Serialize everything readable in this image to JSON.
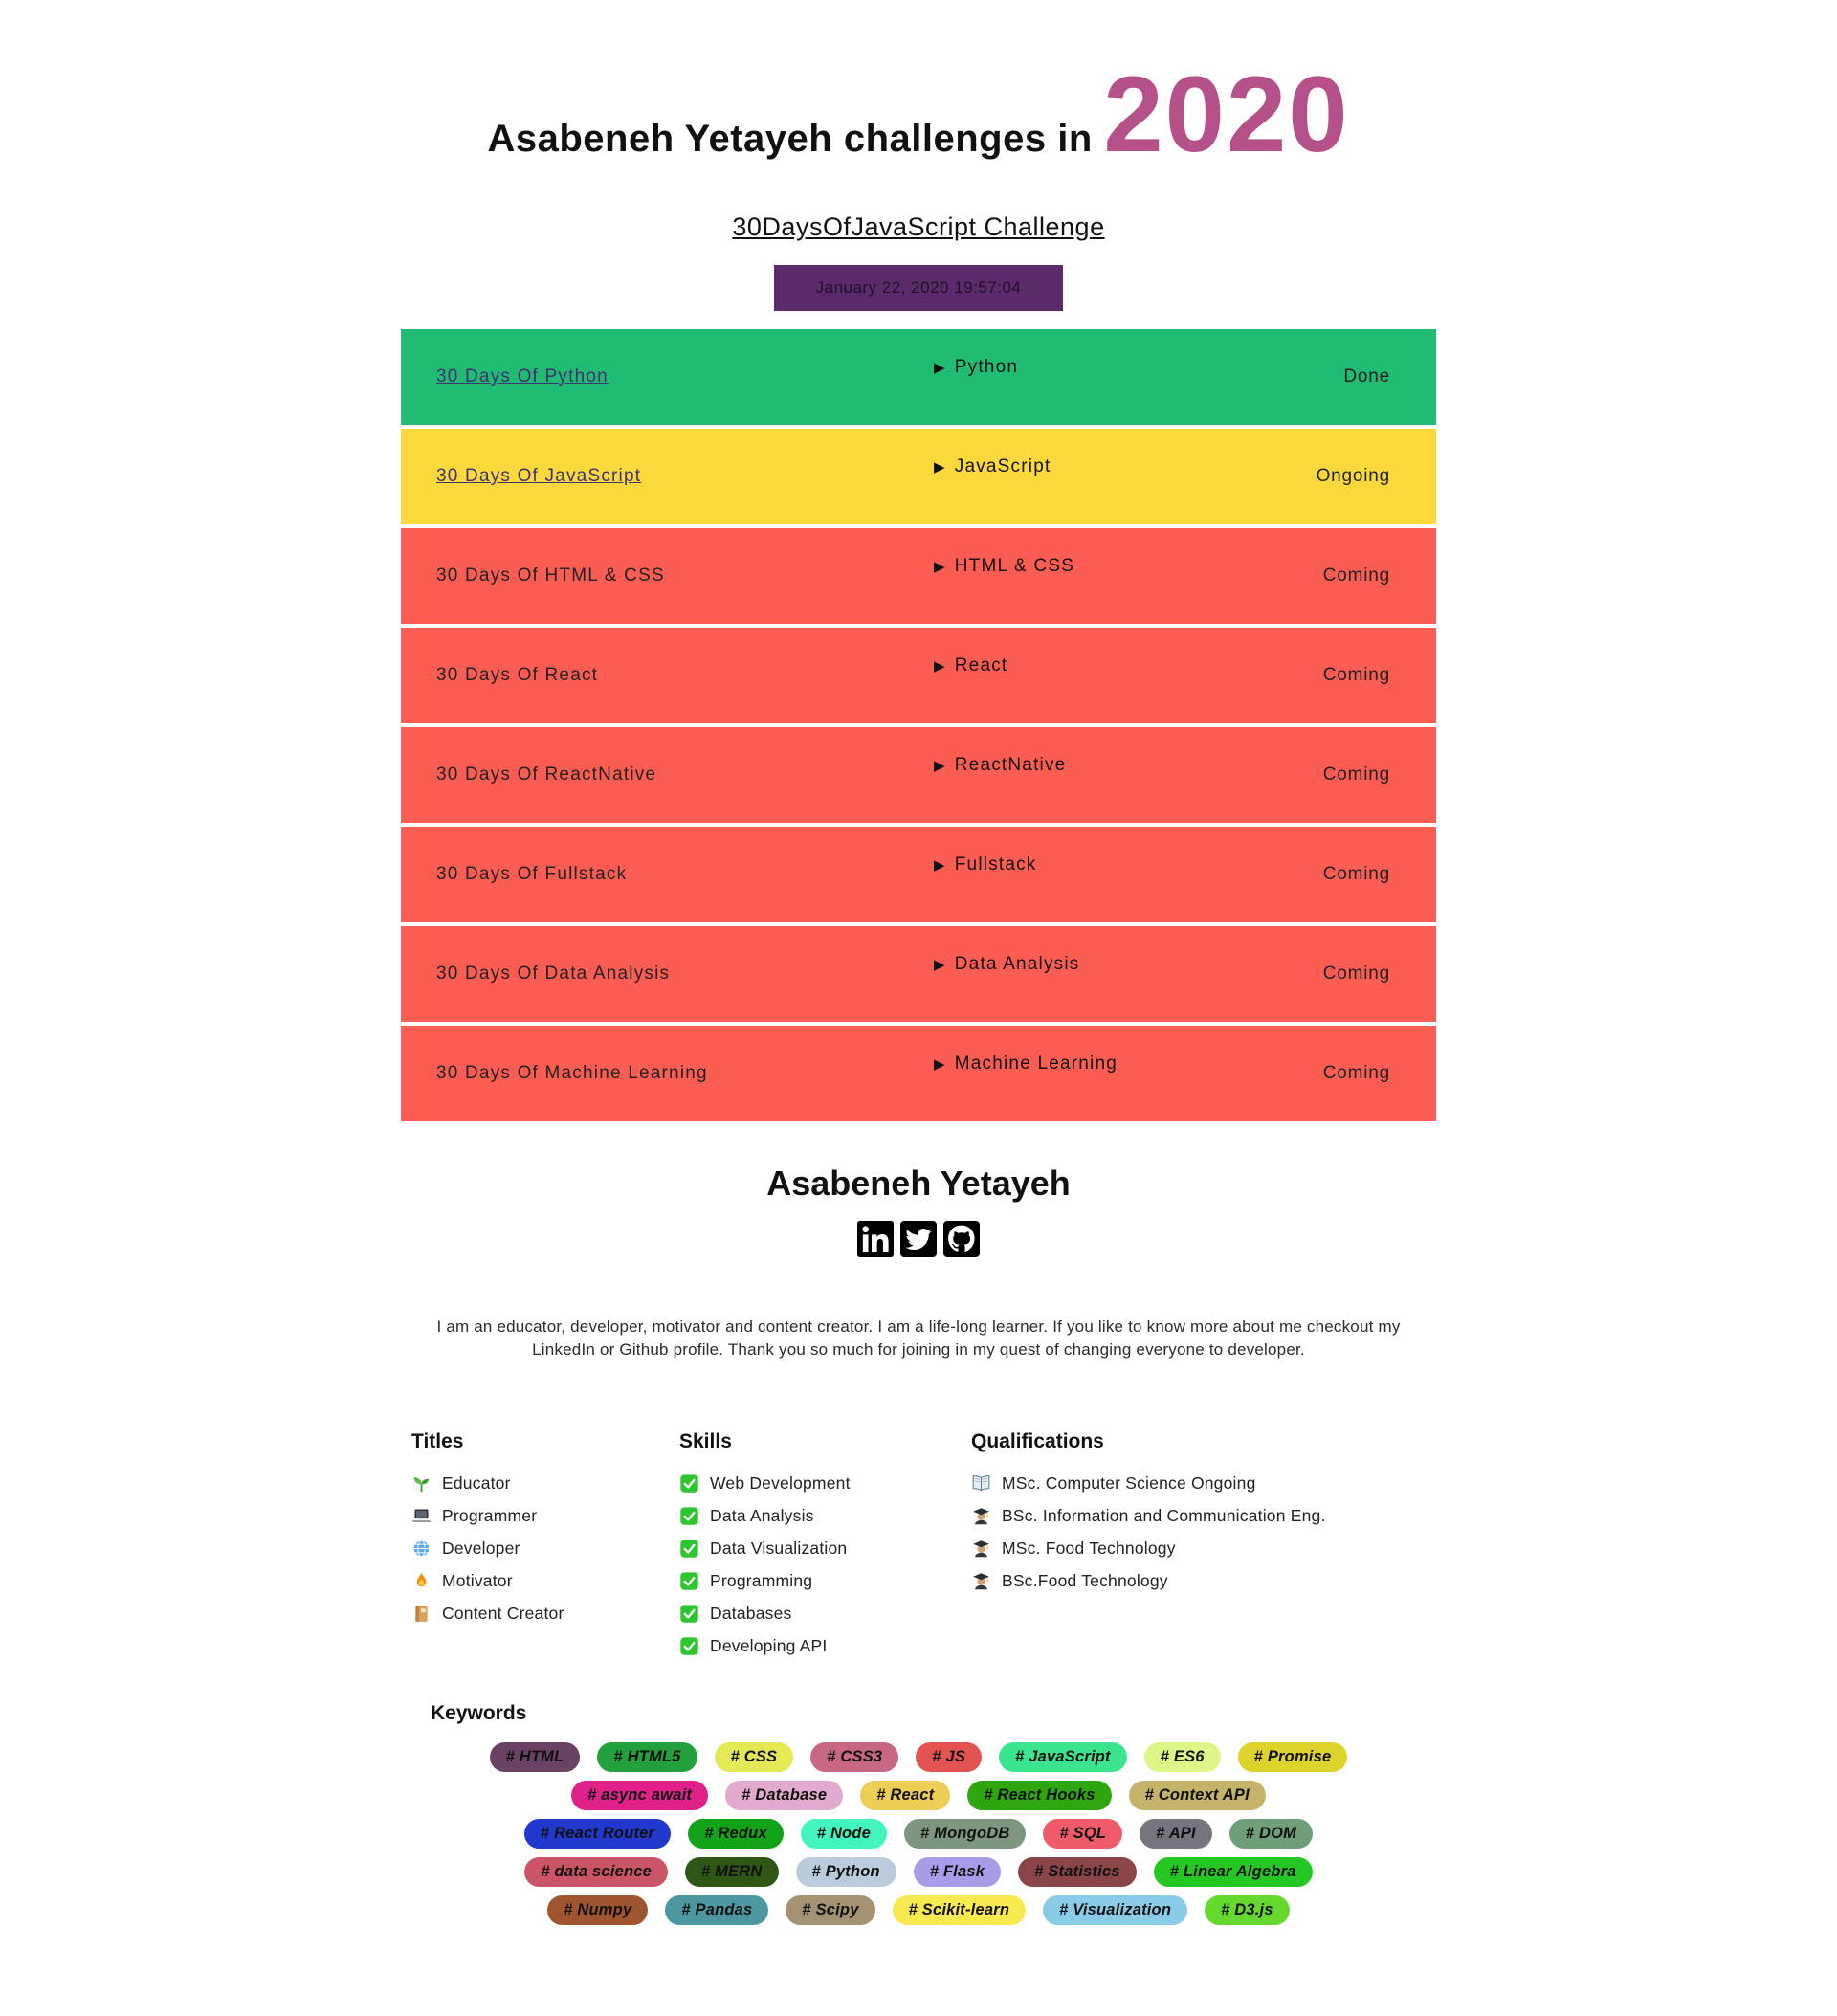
{
  "header": {
    "title_prefix": "Asabeneh Yetayeh challenges in",
    "year": "2020",
    "year_color": "#b55088",
    "subtitle_link": "30DaysOfJavaScript Challenge",
    "datetime": "January 22, 2020 19:57:04",
    "datetime_bg": "#5a2a6a"
  },
  "challenges": [
    {
      "name": "30 Days Of Python",
      "topic": "Python",
      "status": "Done",
      "bg": "#21bc74",
      "is_link": true
    },
    {
      "name": "30 Days Of JavaScript",
      "topic": "JavaScript",
      "status": "Ongoing",
      "bg": "#fbd93d",
      "is_link": true
    },
    {
      "name": "30 Days Of HTML & CSS",
      "topic": "HTML & CSS",
      "status": "Coming",
      "bg": "#fb5d52",
      "is_link": false
    },
    {
      "name": "30 Days Of React",
      "topic": "React",
      "status": "Coming",
      "bg": "#fb5d52",
      "is_link": false
    },
    {
      "name": "30 Days Of ReactNative",
      "topic": "ReactNative",
      "status": "Coming",
      "bg": "#fb5d52",
      "is_link": false
    },
    {
      "name": "30 Days Of Fullstack",
      "topic": "Fullstack",
      "status": "Coming",
      "bg": "#fb5d52",
      "is_link": false
    },
    {
      "name": "30 Days Of Data Analysis",
      "topic": "Data Analysis",
      "status": "Coming",
      "bg": "#fb5d52",
      "is_link": false
    },
    {
      "name": "30 Days Of Machine Learning",
      "topic": "Machine Learning",
      "status": "Coming",
      "bg": "#fb5d52",
      "is_link": false
    }
  ],
  "arrow_glyph": "▶",
  "footer": {
    "name": "Asabeneh Yetayeh",
    "social": [
      {
        "icon": "linkedin-icon",
        "label": "LinkedIn"
      },
      {
        "icon": "twitter-icon",
        "label": "Twitter"
      },
      {
        "icon": "github-icon",
        "label": "GitHub"
      }
    ],
    "bio": "I am an educator, developer, motivator and content creator. I am a life-long learner. If you like to know more about me checkout my LinkedIn or Github profile. Thank you so much for joining in my quest of changing everyone to developer."
  },
  "sections": {
    "titles": {
      "heading": "Titles",
      "items": [
        {
          "icon": "seedling-icon",
          "label": "Educator"
        },
        {
          "icon": "laptop-icon",
          "label": "Programmer"
        },
        {
          "icon": "globe-icon",
          "label": "Developer"
        },
        {
          "icon": "fire-icon",
          "label": "Motivator"
        },
        {
          "icon": "notebook-icon",
          "label": "Content Creator"
        }
      ]
    },
    "skills": {
      "heading": "Skills",
      "items": [
        {
          "icon": "check-icon",
          "label": "Web Development"
        },
        {
          "icon": "check-icon",
          "label": "Data Analysis"
        },
        {
          "icon": "check-icon",
          "label": "Data Visualization"
        },
        {
          "icon": "check-icon",
          "label": "Programming"
        },
        {
          "icon": "check-icon",
          "label": "Databases"
        },
        {
          "icon": "check-icon",
          "label": "Developing API"
        }
      ]
    },
    "qualifications": {
      "heading": "Qualifications",
      "items": [
        {
          "icon": "open-book-icon",
          "label": "MSc. Computer Science Ongoing"
        },
        {
          "icon": "student-icon",
          "label": "BSc. Information and Communication Eng."
        },
        {
          "icon": "student-icon",
          "label": "MSc. Food Technology"
        },
        {
          "icon": "student-icon",
          "label": "BSc.Food Technology"
        }
      ]
    }
  },
  "keywords": {
    "heading": "Keywords",
    "rows": [
      [
        {
          "label": "# HTML",
          "bg": "#6b4264"
        },
        {
          "label": "# HTML5",
          "bg": "#22a13c"
        },
        {
          "label": "# CSS",
          "bg": "#e3ea55"
        },
        {
          "label": "# CSS3",
          "bg": "#c76781"
        },
        {
          "label": "# JS",
          "bg": "#e25352"
        },
        {
          "label": "# JavaScript",
          "bg": "#3be48e"
        },
        {
          "label": "# ES6",
          "bg": "#dcf787"
        },
        {
          "label": "# Promise",
          "bg": "#ded32b"
        }
      ],
      [
        {
          "label": "# async await",
          "bg": "#e0218a"
        },
        {
          "label": "# Database",
          "bg": "#e2aacf"
        },
        {
          "label": "# React",
          "bg": "#eecf55"
        },
        {
          "label": "# React Hooks",
          "bg": "#2ea60f"
        },
        {
          "label": "# Context API",
          "bg": "#c4b369"
        }
      ],
      [
        {
          "label": "# React Router",
          "bg": "#2038ce"
        },
        {
          "label": "# Redux",
          "bg": "#12a318"
        },
        {
          "label": "# Node",
          "bg": "#42f5be"
        },
        {
          "label": "# MongoDB",
          "bg": "#7e967f"
        },
        {
          "label": "# SQL",
          "bg": "#ef5b69"
        },
        {
          "label": "# API",
          "bg": "#75767d"
        },
        {
          "label": "# DOM",
          "bg": "#6e9f79"
        }
      ],
      [
        {
          "label": "# data science",
          "bg": "#cb5468"
        },
        {
          "label": "# MERN",
          "bg": "#2e5716"
        },
        {
          "label": "# Python",
          "bg": "#bacbdd"
        },
        {
          "label": "# Flask",
          "bg": "#a89be8"
        },
        {
          "label": "# Statistics",
          "bg": "#8a4549"
        },
        {
          "label": "# Linear Algebra",
          "bg": "#25c822"
        }
      ],
      [
        {
          "label": "# Numpy",
          "bg": "#9e5530"
        },
        {
          "label": "# Pandas",
          "bg": "#4d97a2"
        },
        {
          "label": "# Scipy",
          "bg": "#a39372"
        },
        {
          "label": "# Scikit-learn",
          "bg": "#f7e94e"
        },
        {
          "label": "# Visualization",
          "bg": "#8acbe8"
        },
        {
          "label": "# D3.js",
          "bg": "#66d92f"
        }
      ]
    ]
  }
}
